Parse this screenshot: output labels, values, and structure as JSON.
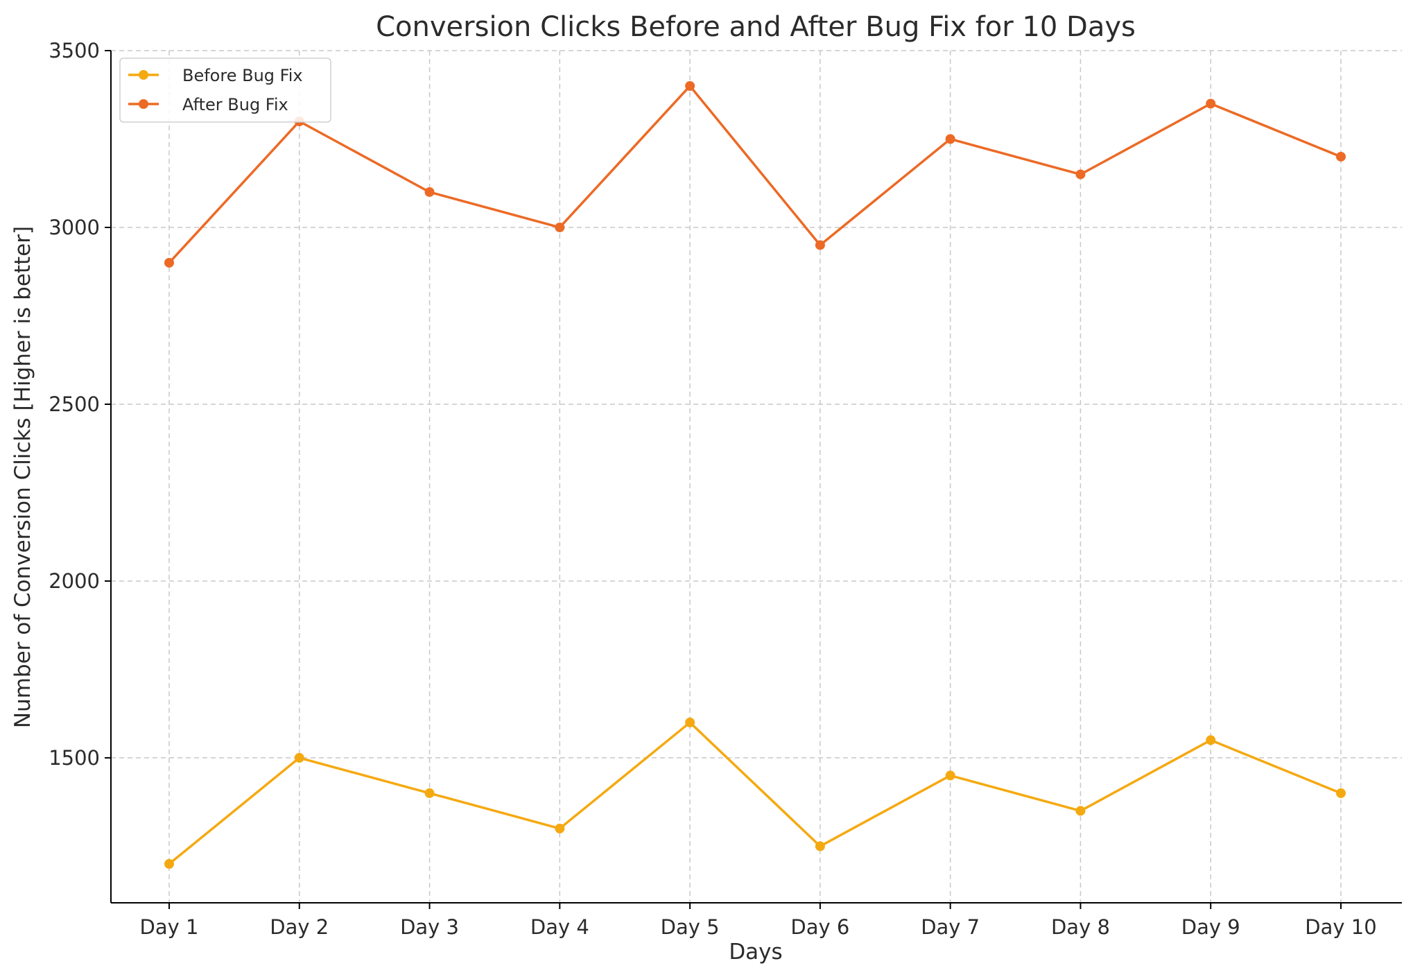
{
  "chart_data": {
    "type": "line",
    "title": "Conversion Clicks Before and After Bug Fix for 10 Days",
    "xlabel": "Days",
    "ylabel": "Number of Conversion Clicks [Higher is better]",
    "categories": [
      "Day 1",
      "Day 2",
      "Day 3",
      "Day 4",
      "Day 5",
      "Day 6",
      "Day 7",
      "Day 8",
      "Day 9",
      "Day 10"
    ],
    "series": [
      {
        "name": "Before Bug Fix",
        "color": "#f5a911",
        "values": [
          1200,
          1500,
          1400,
          1300,
          1600,
          1250,
          1450,
          1350,
          1550,
          1400
        ]
      },
      {
        "name": "After Bug Fix",
        "color": "#ec6a25",
        "values": [
          2900,
          3300,
          3100,
          3000,
          3400,
          2950,
          3250,
          3150,
          3350,
          3200
        ]
      }
    ],
    "ylim": [
      1090,
      3500
    ],
    "yticks": [
      1500,
      2000,
      2500,
      3000,
      3500
    ],
    "grid": true,
    "legend": "top-left",
    "marker": "circle"
  }
}
